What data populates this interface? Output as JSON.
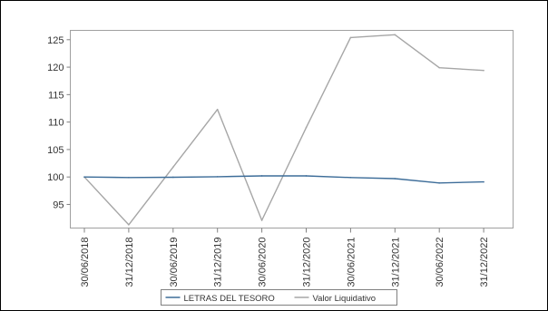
{
  "chart_data": {
    "type": "line",
    "categories": [
      "30/06/2018",
      "31/12/2018",
      "30/06/2019",
      "31/12/2019",
      "30/06/2020",
      "31/12/2020",
      "30/06/2021",
      "31/12/2021",
      "30/06/2022",
      "31/12/2022"
    ],
    "series": [
      {
        "name": "LETRAS DEL TESORO",
        "color": "#3d6d99",
        "values": [
          100.0,
          99.9,
          99.95,
          100.05,
          100.2,
          100.2,
          99.9,
          99.7,
          98.9,
          99.1
        ]
      },
      {
        "name": "Valor Liquidativo",
        "color": "#a6a6a6",
        "values": [
          100.0,
          91.3,
          101.8,
          112.3,
          92.1,
          109.0,
          125.4,
          125.9,
          119.9,
          119.4
        ]
      }
    ],
    "yticks": [
      95,
      100,
      105,
      110,
      115,
      120,
      125
    ],
    "ylim": [
      90.7,
      126.7
    ],
    "grid": false,
    "legend_position": "bottom"
  }
}
